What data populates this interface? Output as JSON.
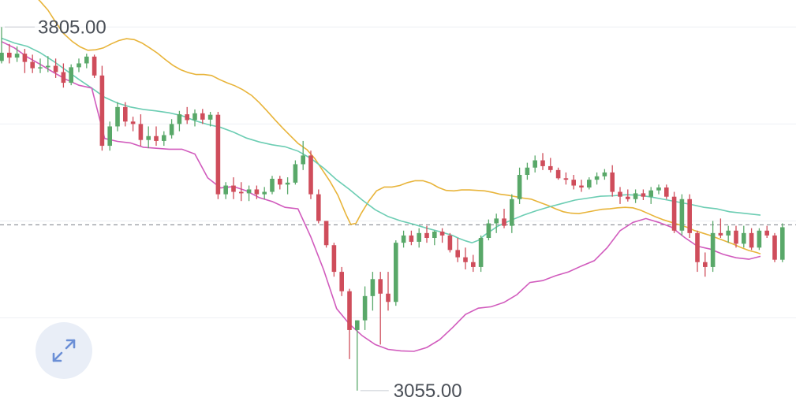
{
  "chart_data": {
    "type": "candlestick",
    "title": "",
    "high_label": "3805.00",
    "low_label": "3055.00",
    "ylim": [
      3045,
      3812
    ],
    "current_price": 3397,
    "grid": true,
    "legend": "none",
    "colors": {
      "up": "#59a869",
      "down": "#cf4d5b",
      "upper_band": "#e8b43a",
      "middle_band": "#6ccdb3",
      "lower_band": "#d15bbd",
      "grid": "#eef0f4",
      "current_line": "#7a7f88"
    },
    "candles": [
      [
        3735,
        3805,
        3730,
        3752
      ],
      [
        3752,
        3770,
        3730,
        3742
      ],
      [
        3742,
        3765,
        3733,
        3750
      ],
      [
        3750,
        3760,
        3710,
        3733
      ],
      [
        3733,
        3748,
        3710,
        3720
      ],
      [
        3720,
        3740,
        3710,
        3722
      ],
      [
        3722,
        3745,
        3712,
        3725
      ],
      [
        3725,
        3740,
        3700,
        3712
      ],
      [
        3712,
        3730,
        3680,
        3690
      ],
      [
        3690,
        3728,
        3685,
        3722
      ],
      [
        3722,
        3740,
        3712,
        3730
      ],
      [
        3730,
        3750,
        3720,
        3744
      ],
      [
        3744,
        3748,
        3700,
        3705
      ],
      [
        3705,
        3725,
        3550,
        3560
      ],
      [
        3560,
        3610,
        3550,
        3600
      ],
      [
        3600,
        3650,
        3590,
        3640
      ],
      [
        3640,
        3650,
        3600,
        3610
      ],
      [
        3610,
        3620,
        3590,
        3605
      ],
      [
        3605,
        3625,
        3560,
        3572
      ],
      [
        3572,
        3600,
        3555,
        3580
      ],
      [
        3580,
        3600,
        3560,
        3570
      ],
      [
        3570,
        3590,
        3560,
        3582
      ],
      [
        3582,
        3615,
        3575,
        3605
      ],
      [
        3605,
        3632,
        3590,
        3625
      ],
      [
        3625,
        3640,
        3605,
        3613
      ],
      [
        3613,
        3635,
        3600,
        3627
      ],
      [
        3627,
        3636,
        3605,
        3614
      ],
      [
        3614,
        3630,
        3600,
        3624
      ],
      [
        3624,
        3630,
        3450,
        3460
      ],
      [
        3460,
        3485,
        3450,
        3478
      ],
      [
        3478,
        3495,
        3450,
        3465
      ],
      [
        3465,
        3485,
        3446,
        3462
      ],
      [
        3462,
        3478,
        3446,
        3470
      ],
      [
        3470,
        3478,
        3450,
        3460
      ],
      [
        3460,
        3475,
        3450,
        3465
      ],
      [
        3465,
        3498,
        3460,
        3492
      ],
      [
        3492,
        3498,
        3470,
        3480
      ],
      [
        3480,
        3495,
        3460,
        3484
      ],
      [
        3484,
        3530,
        3480,
        3522
      ],
      [
        3522,
        3570,
        3510,
        3540
      ],
      [
        3540,
        3550,
        3450,
        3460
      ],
      [
        3460,
        3470,
        3400,
        3405
      ],
      [
        3405,
        3405,
        3350,
        3355
      ],
      [
        3355,
        3360,
        3290,
        3300
      ],
      [
        3300,
        3310,
        3250,
        3260
      ],
      [
        3260,
        3265,
        3120,
        3180
      ],
      [
        3180,
        3200,
        3055,
        3200
      ],
      [
        3200,
        3270,
        3180,
        3250
      ],
      [
        3250,
        3300,
        3220,
        3285
      ],
      [
        3285,
        3300,
        3150,
        3255
      ],
      [
        3255,
        3300,
        3220,
        3238
      ],
      [
        3238,
        3365,
        3230,
        3360
      ],
      [
        3360,
        3385,
        3350,
        3375
      ],
      [
        3375,
        3385,
        3355,
        3362
      ],
      [
        3362,
        3390,
        3350,
        3380
      ],
      [
        3380,
        3395,
        3360,
        3370
      ],
      [
        3370,
        3385,
        3355,
        3383
      ],
      [
        3383,
        3390,
        3360,
        3375
      ],
      [
        3375,
        3380,
        3340,
        3345
      ],
      [
        3345,
        3370,
        3320,
        3330
      ],
      [
        3330,
        3350,
        3305,
        3320
      ],
      [
        3320,
        3335,
        3300,
        3310
      ],
      [
        3310,
        3375,
        3300,
        3370
      ],
      [
        3370,
        3408,
        3365,
        3400
      ],
      [
        3400,
        3420,
        3380,
        3410
      ],
      [
        3410,
        3430,
        3390,
        3395
      ],
      [
        3395,
        3460,
        3380,
        3450
      ],
      [
        3450,
        3515,
        3440,
        3500
      ],
      [
        3500,
        3525,
        3490,
        3515
      ],
      [
        3515,
        3540,
        3505,
        3530
      ],
      [
        3530,
        3545,
        3510,
        3518
      ],
      [
        3518,
        3535,
        3505,
        3510
      ],
      [
        3510,
        3515,
        3490,
        3493
      ],
      [
        3493,
        3505,
        3480,
        3490
      ],
      [
        3490,
        3500,
        3470,
        3478
      ],
      [
        3478,
        3490,
        3465,
        3474
      ],
      [
        3474,
        3495,
        3470,
        3490
      ],
      [
        3490,
        3505,
        3480,
        3497
      ],
      [
        3497,
        3512,
        3490,
        3505
      ],
      [
        3505,
        3520,
        3455,
        3465
      ],
      [
        3465,
        3475,
        3440,
        3455
      ],
      [
        3455,
        3470,
        3445,
        3450
      ],
      [
        3450,
        3470,
        3442,
        3462
      ],
      [
        3462,
        3470,
        3448,
        3455
      ],
      [
        3455,
        3475,
        3440,
        3468
      ],
      [
        3468,
        3480,
        3460,
        3474
      ],
      [
        3474,
        3480,
        3450,
        3455
      ],
      [
        3455,
        3465,
        3380,
        3385
      ],
      [
        3385,
        3460,
        3375,
        3450
      ],
      [
        3450,
        3460,
        3370,
        3380
      ],
      [
        3380,
        3385,
        3300,
        3320
      ],
      [
        3320,
        3340,
        3290,
        3310
      ],
      [
        3310,
        3405,
        3300,
        3380
      ],
      [
        3380,
        3410,
        3370,
        3375
      ],
      [
        3375,
        3395,
        3360,
        3385
      ],
      [
        3385,
        3395,
        3350,
        3358
      ],
      [
        3358,
        3395,
        3350,
        3380
      ],
      [
        3380,
        3390,
        3345,
        3350
      ],
      [
        3350,
        3390,
        3345,
        3385
      ],
      [
        3385,
        3395,
        3370,
        3375
      ],
      [
        3375,
        3380,
        3320,
        3325
      ],
      [
        3325,
        3400,
        3320,
        3392
      ]
    ],
    "upper_band": [
      [
        0,
        4030
      ],
      [
        6,
        3975
      ],
      [
        12,
        3935
      ],
      [
        18,
        3900
      ],
      [
        24,
        3874
      ],
      [
        30,
        3858
      ],
      [
        36,
        3840
      ],
      [
        42,
        3815
      ],
      [
        48,
        3792
      ],
      [
        55,
        3775
      ],
      [
        61,
        3764
      ],
      [
        67,
        3757
      ],
      [
        73,
        3758
      ],
      [
        79,
        3762
      ],
      [
        85,
        3770
      ],
      [
        91,
        3777
      ],
      [
        97,
        3781
      ],
      [
        103,
        3779
      ],
      [
        109,
        3772
      ],
      [
        115,
        3762
      ],
      [
        121,
        3751
      ],
      [
        127,
        3738
      ],
      [
        133,
        3726
      ],
      [
        139,
        3717
      ],
      [
        145,
        3711
      ],
      [
        151,
        3707
      ],
      [
        157,
        3707
      ],
      [
        163,
        3705
      ],
      [
        169,
        3697
      ],
      [
        175,
        3690
      ],
      [
        181,
        3684
      ],
      [
        187,
        3676
      ],
      [
        194,
        3664
      ],
      [
        200,
        3649
      ],
      [
        206,
        3632
      ],
      [
        212,
        3614
      ],
      [
        218,
        3597
      ],
      [
        224,
        3581
      ],
      [
        230,
        3565
      ],
      [
        237,
        3552
      ],
      [
        243,
        3534
      ],
      [
        249,
        3510
      ],
      [
        255,
        3486
      ],
      [
        261,
        3458
      ],
      [
        267,
        3420
      ],
      [
        271,
        3398
      ],
      [
        275,
        3400
      ],
      [
        279,
        3420
      ],
      [
        285,
        3446
      ],
      [
        291,
        3467
      ],
      [
        297,
        3475
      ],
      [
        303,
        3475
      ],
      [
        309,
        3478
      ],
      [
        315,
        3484
      ],
      [
        321,
        3488
      ],
      [
        327,
        3488
      ],
      [
        333,
        3483
      ],
      [
        339,
        3474
      ],
      [
        345,
        3468
      ],
      [
        351,
        3467
      ],
      [
        357,
        3469
      ],
      [
        363,
        3469
      ],
      [
        369,
        3468
      ],
      [
        375,
        3467
      ],
      [
        381,
        3464
      ],
      [
        387,
        3460
      ],
      [
        393,
        3458
      ],
      [
        399,
        3455
      ],
      [
        405,
        3452
      ],
      [
        411,
        3450
      ],
      [
        418,
        3443
      ],
      [
        424,
        3437
      ],
      [
        430,
        3430
      ],
      [
        436,
        3424
      ],
      [
        442,
        3421
      ],
      [
        448,
        3420
      ],
      [
        454,
        3423
      ],
      [
        460,
        3426
      ],
      [
        466,
        3429
      ],
      [
        472,
        3430
      ],
      [
        478,
        3432
      ],
      [
        484,
        3433
      ],
      [
        490,
        3432
      ],
      [
        496,
        3427
      ],
      [
        502,
        3420
      ],
      [
        508,
        3413
      ],
      [
        514,
        3407
      ],
      [
        520,
        3402
      ],
      [
        526,
        3397
      ],
      [
        532,
        3392
      ],
      [
        538,
        3385
      ],
      [
        544,
        3380
      ],
      [
        550,
        3375
      ],
      [
        556,
        3369
      ],
      [
        562,
        3363
      ],
      [
        568,
        3357
      ],
      [
        574,
        3350
      ],
      [
        580,
        3344
      ],
      [
        586,
        3340
      ],
      [
        589,
        3337
      ]
    ],
    "middle_band": [
      [
        0,
        3782
      ],
      [
        10,
        3772
      ],
      [
        20,
        3765
      ],
      [
        30,
        3752
      ],
      [
        40,
        3735
      ],
      [
        50,
        3716
      ],
      [
        60,
        3697
      ],
      [
        70,
        3679
      ],
      [
        80,
        3660
      ],
      [
        90,
        3648
      ],
      [
        100,
        3640
      ],
      [
        110,
        3635
      ],
      [
        120,
        3632
      ],
      [
        130,
        3628
      ],
      [
        140,
        3622
      ],
      [
        150,
        3612
      ],
      [
        160,
        3604
      ],
      [
        170,
        3598
      ],
      [
        180,
        3588
      ],
      [
        190,
        3576
      ],
      [
        200,
        3568
      ],
      [
        210,
        3562
      ],
      [
        220,
        3558
      ],
      [
        230,
        3549
      ],
      [
        240,
        3534
      ],
      [
        250,
        3514
      ],
      [
        260,
        3490
      ],
      [
        270,
        3470
      ],
      [
        280,
        3448
      ],
      [
        290,
        3428
      ],
      [
        300,
        3414
      ],
      [
        310,
        3405
      ],
      [
        320,
        3398
      ],
      [
        330,
        3390
      ],
      [
        340,
        3383
      ],
      [
        350,
        3375
      ],
      [
        355,
        3369
      ],
      [
        360,
        3364
      ],
      [
        365,
        3360
      ],
      [
        370,
        3365
      ],
      [
        375,
        3376
      ],
      [
        385,
        3394
      ],
      [
        395,
        3406
      ],
      [
        405,
        3417
      ],
      [
        415,
        3426
      ],
      [
        425,
        3434
      ],
      [
        435,
        3441
      ],
      [
        445,
        3448
      ],
      [
        455,
        3452
      ],
      [
        465,
        3456
      ],
      [
        475,
        3457
      ],
      [
        485,
        3459
      ],
      [
        495,
        3458
      ],
      [
        505,
        3454
      ],
      [
        515,
        3449
      ],
      [
        525,
        3444
      ],
      [
        535,
        3439
      ],
      [
        545,
        3433
      ],
      [
        555,
        3430
      ],
      [
        565,
        3424
      ],
      [
        575,
        3421
      ],
      [
        589,
        3417
      ]
    ],
    "lower_band": [
      [
        0,
        3775
      ],
      [
        10,
        3762
      ],
      [
        20,
        3743
      ],
      [
        30,
        3728
      ],
      [
        40,
        3712
      ],
      [
        50,
        3697
      ],
      [
        60,
        3685
      ],
      [
        70,
        3679
      ],
      [
        80,
        3575
      ],
      [
        90,
        3569
      ],
      [
        100,
        3566
      ],
      [
        110,
        3557
      ],
      [
        120,
        3555
      ],
      [
        130,
        3553
      ],
      [
        140,
        3553
      ],
      [
        150,
        3543
      ],
      [
        160,
        3494
      ],
      [
        170,
        3473
      ],
      [
        180,
        3476
      ],
      [
        190,
        3467
      ],
      [
        200,
        3453
      ],
      [
        210,
        3445
      ],
      [
        220,
        3433
      ],
      [
        230,
        3430
      ],
      [
        240,
        3372
      ],
      [
        250,
        3304
      ],
      [
        260,
        3224
      ],
      [
        270,
        3192
      ],
      [
        280,
        3168
      ],
      [
        290,
        3150
      ],
      [
        300,
        3140
      ],
      [
        310,
        3137
      ],
      [
        320,
        3136
      ],
      [
        330,
        3144
      ],
      [
        340,
        3160
      ],
      [
        350,
        3185
      ],
      [
        360,
        3212
      ],
      [
        370,
        3225
      ],
      [
        380,
        3228
      ],
      [
        390,
        3237
      ],
      [
        400,
        3253
      ],
      [
        410,
        3278
      ],
      [
        420,
        3282
      ],
      [
        430,
        3292
      ],
      [
        440,
        3300
      ],
      [
        450,
        3312
      ],
      [
        460,
        3323
      ],
      [
        470,
        3350
      ],
      [
        480,
        3385
      ],
      [
        490,
        3402
      ],
      [
        500,
        3410
      ],
      [
        510,
        3402
      ],
      [
        520,
        3392
      ],
      [
        530,
        3371
      ],
      [
        540,
        3353
      ],
      [
        550,
        3347
      ],
      [
        560,
        3336
      ],
      [
        570,
        3329
      ],
      [
        580,
        3326
      ],
      [
        589,
        3332
      ]
    ]
  },
  "controls": {
    "fullscreen_icon": "expand-diagonal-arrows-icon",
    "accent": "#6b8fd6"
  }
}
